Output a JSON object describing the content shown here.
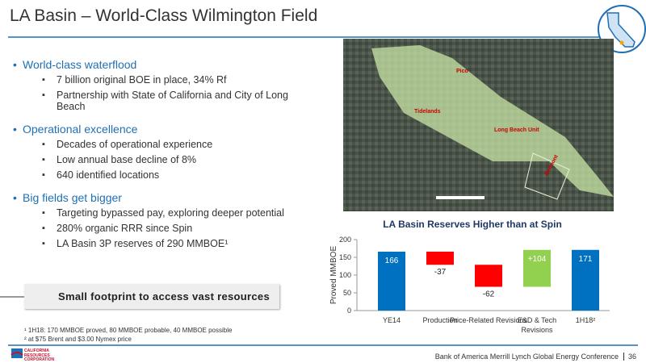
{
  "header": {
    "title": "LA Basin – World-Class Wilmington Field"
  },
  "sections": [
    {
      "heading": "World-class waterflood",
      "items": [
        "7 billion original BOE in place, 34% Rf",
        "Partnership with State of California and City of Long Beach"
      ]
    },
    {
      "heading": "Operational excellence",
      "items": [
        "Decades of operational experience",
        "Low annual base decline of 8%",
        "640 identified locations"
      ]
    },
    {
      "heading": "Big fields get bigger",
      "items": [
        "Targeting bypassed pay, exploring deeper potential",
        "280% organic RRR since Spin",
        "LA Basin 3P reserves of 290 MMBOE¹"
      ]
    }
  ],
  "callout": "Small footprint to access vast resources",
  "footnotes": [
    "¹ 1H18: 170 MMBOE proved, 80 MMBOE probable, 40 MMBOE possible",
    "² at $75 Brent and $3.00 Nymex price"
  ],
  "footer": {
    "conference": "Bank of America Merrill Lynch Global Energy Conference",
    "page": "36"
  },
  "logo": [
    "CALIFORNIA",
    "RESOURCES",
    "CORPORATION"
  ],
  "map_labels": [
    "Pico",
    "Tidelands",
    "Long Beach Unit",
    "Belmont"
  ],
  "chart_data": {
    "type": "waterfall",
    "title": "LA Basin Reserves Higher than at Spin",
    "y_label": "Proved MMBOE",
    "categories": [
      "YE14",
      "Production",
      "Price-Related Revisions",
      "E&D & Tech Revisions",
      "1H18²"
    ],
    "values": [
      166,
      -37,
      -62,
      104,
      171
    ],
    "value_labels": [
      "166",
      "-37",
      "-62",
      "+104",
      "171"
    ],
    "totals": [
      true,
      false,
      false,
      false,
      true
    ],
    "colors": {
      "total": "#0070c0",
      "decrease": "#ff0000",
      "increase": "#92d050"
    },
    "ylim": [
      0,
      200
    ],
    "yticks": [
      0,
      50,
      100,
      150,
      200
    ]
  }
}
